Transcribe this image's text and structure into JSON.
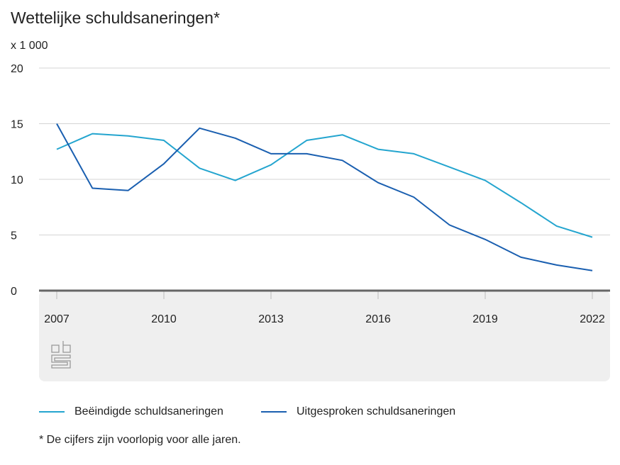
{
  "chart_data": {
    "type": "line",
    "title": "Wettelijke schuldsaneringen*",
    "ylabel": "x 1 000",
    "ylim": [
      0,
      20
    ],
    "yticks": [
      "0",
      "5",
      "10",
      "15",
      "20"
    ],
    "xticks": [
      "2007",
      "2010",
      "2013",
      "2016",
      "2019",
      "2022"
    ],
    "grid": true,
    "legend": "bottom",
    "x": [
      2007,
      2008,
      2009,
      2010,
      2011,
      2012,
      2013,
      2014,
      2015,
      2016,
      2017,
      2018,
      2019,
      2020,
      2021,
      2022
    ],
    "series": [
      {
        "name": "Beëindigde schuldsaneringen",
        "color": "#24a5cf",
        "values": [
          12.7,
          14.1,
          13.9,
          13.5,
          11.0,
          9.9,
          11.3,
          13.5,
          14.0,
          12.7,
          12.3,
          11.1,
          9.9,
          7.9,
          5.8,
          4.8
        ]
      },
      {
        "name": "Uitgesproken schuldsaneringen",
        "color": "#1a5fb0",
        "values": [
          15.0,
          9.2,
          9.0,
          11.4,
          14.6,
          13.7,
          12.3,
          12.3,
          11.7,
          9.7,
          8.4,
          5.9,
          4.6,
          3.0,
          2.3,
          1.8
        ]
      }
    ],
    "footnote": "* De cijfers zijn voorlopig voor alle jaren."
  },
  "logo": "cbs"
}
